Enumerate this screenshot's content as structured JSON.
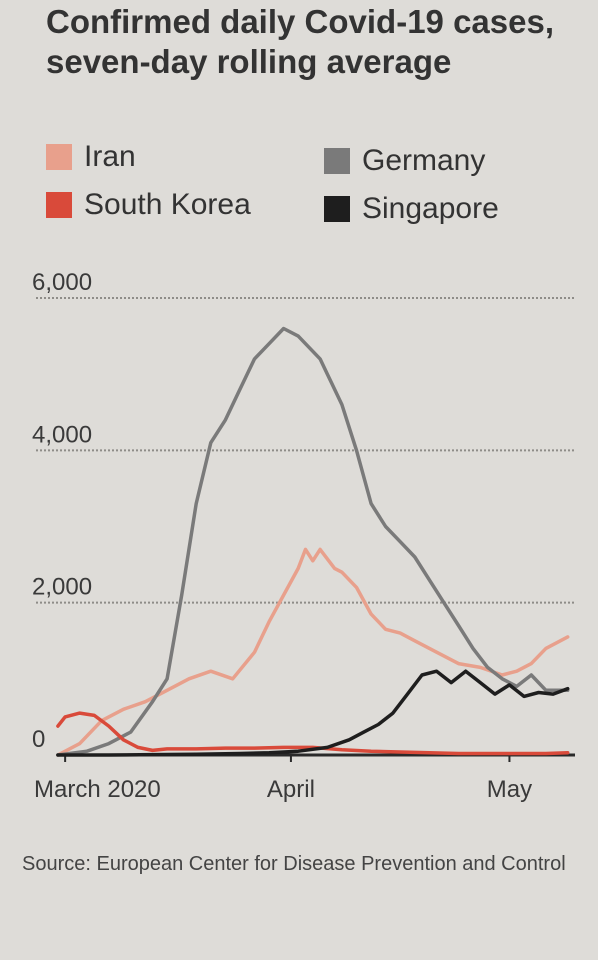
{
  "title": "Confirmed daily Covid-19 cases, seven-day rolling average",
  "source": "Source: European Center for Disease Prevention and Control",
  "legend": [
    {
      "label": "Iran",
      "color": "#e8a08c"
    },
    {
      "label": "Germany",
      "color": "#7a7a7a"
    },
    {
      "label": "South Korea",
      "color": "#d94a3a"
    },
    {
      "label": "Singapore",
      "color": "#1e1e1e"
    }
  ],
  "chart_data": {
    "type": "line",
    "title": "Confirmed daily Covid-19 cases, seven-day rolling average",
    "xlabel": "",
    "ylabel": "",
    "ylim": [
      0,
      6000
    ],
    "y_ticks": [
      {
        "value": 0,
        "label": "0"
      },
      {
        "value": 2000,
        "label": "2,000"
      },
      {
        "value": 4000,
        "label": "4,000"
      },
      {
        "value": 6000,
        "label": "6,000"
      }
    ],
    "x_ticks": [
      {
        "value": 0,
        "label": "March 2020"
      },
      {
        "value": 31,
        "label": "April"
      },
      {
        "value": 61,
        "label": "May"
      }
    ],
    "xlim": [
      -4,
      70
    ],
    "grid": "horizontal dotted",
    "legend_position": "top",
    "x_unit": "days since 1 March 2020",
    "series": [
      {
        "name": "Iran",
        "color": "#e8a08c",
        "x": [
          -1,
          2,
          5,
          8,
          11,
          14,
          17,
          20,
          23,
          26,
          28,
          30,
          32,
          33,
          34,
          35,
          37,
          38,
          40,
          42,
          44,
          46,
          48,
          51,
          54,
          57,
          60,
          62,
          64,
          66,
          69
        ],
        "y": [
          0,
          150,
          450,
          600,
          700,
          850,
          1000,
          1100,
          1000,
          1350,
          1750,
          2100,
          2450,
          2700,
          2550,
          2700,
          2450,
          2400,
          2200,
          1850,
          1650,
          1600,
          1500,
          1350,
          1200,
          1150,
          1050,
          1100,
          1200,
          1400,
          1550
        ]
      },
      {
        "name": "Germany",
        "color": "#7a7a7a",
        "x": [
          -1,
          3,
          6,
          9,
          12,
          14,
          16,
          18,
          20,
          22,
          24,
          26,
          28,
          30,
          32,
          34,
          35,
          36,
          38,
          40,
          42,
          44,
          46,
          48,
          50,
          52,
          54,
          56,
          58,
          60,
          62,
          64,
          66,
          69
        ],
        "y": [
          0,
          50,
          150,
          300,
          700,
          1000,
          2100,
          3300,
          4100,
          4400,
          4800,
          5200,
          5400,
          5600,
          5500,
          5300,
          5200,
          5000,
          4600,
          4000,
          3300,
          3000,
          2800,
          2600,
          2300,
          2000,
          1700,
          1400,
          1150,
          1000,
          900,
          1050,
          850,
          850
        ]
      },
      {
        "name": "South Korea",
        "color": "#d94a3a",
        "x": [
          -1,
          0,
          2,
          4,
          6,
          8,
          10,
          12,
          14,
          18,
          22,
          26,
          30,
          34,
          38,
          42,
          46,
          50,
          54,
          58,
          62,
          66,
          69
        ],
        "y": [
          380,
          500,
          550,
          520,
          380,
          200,
          100,
          60,
          80,
          80,
          90,
          90,
          100,
          100,
          70,
          50,
          40,
          30,
          20,
          20,
          20,
          20,
          30
        ]
      },
      {
        "name": "Singapore",
        "color": "#1e1e1e",
        "x": [
          -1,
          6,
          12,
          18,
          24,
          28,
          32,
          36,
          39,
          41,
          43,
          45,
          47,
          49,
          51,
          53,
          55,
          57,
          59,
          61,
          63,
          65,
          67,
          69
        ],
        "y": [
          0,
          0,
          5,
          10,
          20,
          30,
          50,
          100,
          200,
          300,
          400,
          550,
          800,
          1050,
          1100,
          950,
          1100,
          950,
          800,
          920,
          770,
          820,
          800,
          870
        ]
      }
    ]
  }
}
